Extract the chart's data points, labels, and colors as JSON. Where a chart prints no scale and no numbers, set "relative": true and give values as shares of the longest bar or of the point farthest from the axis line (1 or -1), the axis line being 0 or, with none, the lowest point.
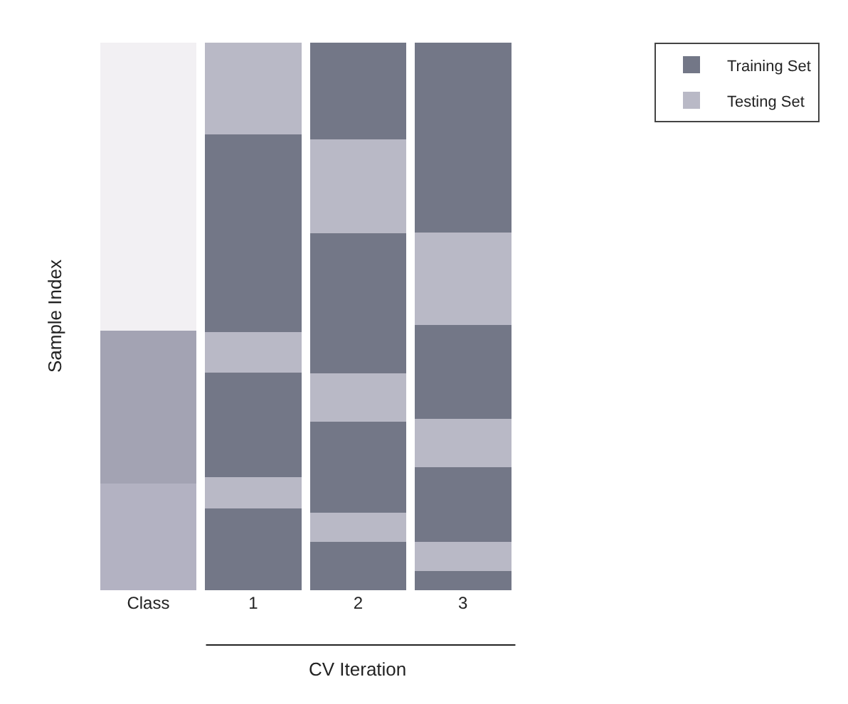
{
  "chart_data": {
    "type": "bar",
    "stacked": true,
    "relative": true,
    "ylabel": "Sample Index",
    "xlabel": "CV Iteration",
    "categories": [
      "Class",
      "1",
      "2",
      "3"
    ],
    "legend": "top right",
    "series": [
      {
        "color": "#b3b2c2",
        "values": [
          0.195,
          null,
          null,
          null
        ]
      },
      {
        "color": "#a3a3b3",
        "values": [
          0.279,
          null,
          null,
          null
        ]
      },
      {
        "color": "#f2f0f3",
        "values": [
          0.526,
          null,
          null,
          null
        ]
      },
      {
        "name": "Training Set",
        "color": "#737787",
        "values": [
          null,
          0.15,
          null,
          null
        ]
      },
      {
        "name": "Testing Set",
        "color": "#b9b9c6",
        "values": [
          null,
          0.057,
          null,
          null
        ]
      },
      {
        "color": "#737787",
        "values": [
          null,
          0.19,
          null,
          null
        ]
      },
      {
        "color": "#b9b9c6",
        "values": [
          null,
          0.075,
          null,
          null
        ]
      },
      {
        "color": "#737787",
        "values": [
          null,
          0.36,
          null,
          null
        ]
      },
      {
        "color": "#b9b9c6",
        "values": [
          null,
          0.168,
          null,
          null
        ]
      },
      {
        "color": "#737787",
        "values": [
          null,
          null,
          0.088,
          null
        ]
      },
      {
        "color": "#b9b9c6",
        "values": [
          null,
          null,
          0.053,
          null
        ]
      },
      {
        "color": "#737787",
        "values": [
          null,
          null,
          0.167,
          null
        ]
      },
      {
        "color": "#b9b9c6",
        "values": [
          null,
          null,
          0.088,
          null
        ]
      },
      {
        "color": "#737787",
        "values": [
          null,
          null,
          0.256,
          null
        ]
      },
      {
        "color": "#b9b9c6",
        "values": [
          null,
          null,
          0.172,
          null
        ]
      },
      {
        "color": "#737787",
        "values": [
          null,
          null,
          0.176,
          null
        ]
      },
      {
        "color": "#737787",
        "values": [
          null,
          null,
          null,
          0.035
        ]
      },
      {
        "color": "#b9b9c6",
        "values": [
          null,
          null,
          null,
          0.053
        ]
      },
      {
        "color": "#737787",
        "values": [
          null,
          null,
          null,
          0.137
        ]
      },
      {
        "color": "#b9b9c6",
        "values": [
          null,
          null,
          null,
          0.088
        ]
      },
      {
        "color": "#737787",
        "values": [
          null,
          null,
          null,
          0.172
        ]
      },
      {
        "color": "#b9b9c6",
        "values": [
          null,
          null,
          null,
          0.168
        ]
      },
      {
        "color": "#737787",
        "values": [
          null,
          null,
          null,
          0.347
        ]
      }
    ]
  }
}
